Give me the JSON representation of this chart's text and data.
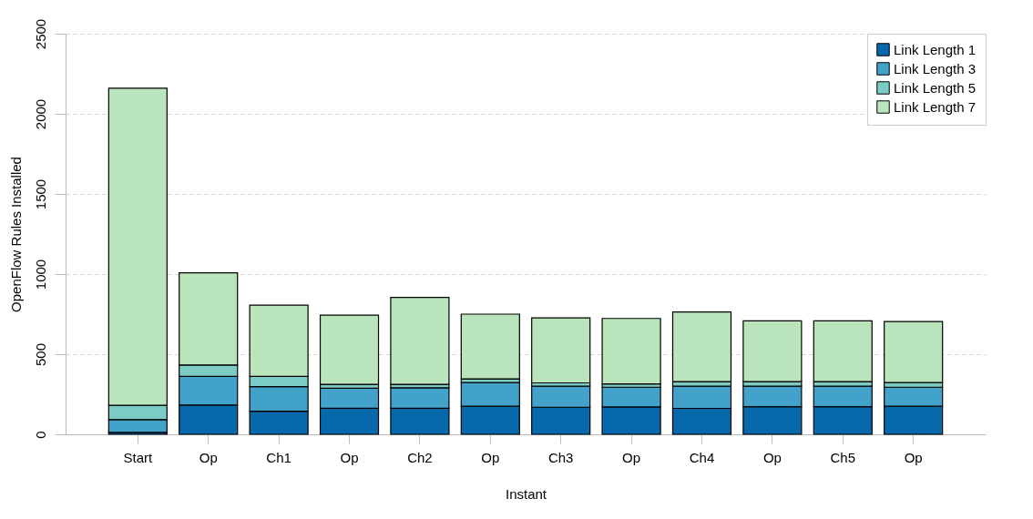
{
  "chart_data": {
    "type": "bar",
    "stacked": true,
    "xlabel": "Instant",
    "ylabel": "OpenFlow Rules Installed",
    "categories": [
      "Start",
      "Op",
      "Ch1",
      "Op",
      "Ch2",
      "Op",
      "Ch3",
      "Op",
      "Ch4",
      "Op",
      "Ch5",
      "Op"
    ],
    "series": [
      {
        "name": "Link Length 1",
        "color": "#0868ac",
        "values": [
          12,
          183,
          144,
          163,
          163,
          175,
          169,
          171,
          162,
          173,
          173,
          175
        ]
      },
      {
        "name": "Link Length 3",
        "color": "#43a2ca",
        "values": [
          80,
          179,
          154,
          125,
          127,
          148,
          131,
          123,
          138,
          127,
          127,
          119
        ]
      },
      {
        "name": "Link Length 5",
        "color": "#7bccc4",
        "values": [
          89,
          71,
          64,
          24,
          22,
          23,
          21,
          21,
          29,
          29,
          29,
          29
        ]
      },
      {
        "name": "Link Length 7",
        "color": "#bae4bc",
        "values": [
          1979,
          575,
          444,
          432,
          542,
          404,
          406,
          408,
          434,
          379,
          379,
          381
        ]
      }
    ],
    "ylim": [
      0,
      2500
    ],
    "yticks": [
      0,
      500,
      1000,
      1500,
      2000,
      2500
    ],
    "grid": "y",
    "legend": "top right"
  }
}
